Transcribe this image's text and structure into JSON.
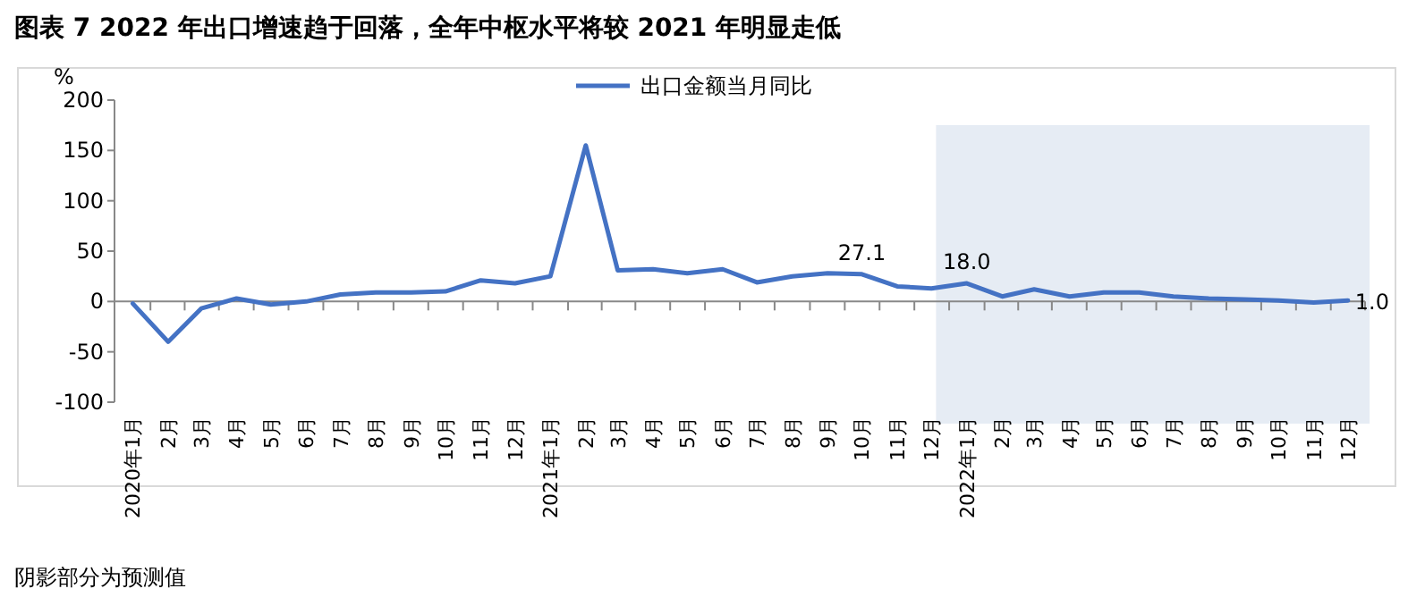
{
  "chart_data": {
    "type": "line",
    "title": "图表 7  2022 年出口增速趋于回落，全年中枢水平将较 2021 年明显走低",
    "ylabel": "%",
    "x": [
      "2020-01",
      "2020-02",
      "2020-03",
      "2020-04",
      "2020-05",
      "2020-06",
      "2020-07",
      "2020-08",
      "2020-09",
      "2020-10",
      "2020-11",
      "2020-12",
      "2021-01",
      "2021-02",
      "2021-03",
      "2021-04",
      "2021-05",
      "2021-06",
      "2021-07",
      "2021-08",
      "2021-09",
      "2021-10",
      "2021-11",
      "2021-12",
      "2022-01",
      "2022-02",
      "2022-03",
      "2022-04",
      "2022-05",
      "2022-06",
      "2022-07",
      "2022-08",
      "2022-09",
      "2022-10",
      "2022-11",
      "2022-12"
    ],
    "series": [
      {
        "name": "出口金额当月同比",
        "color": "#4472c4",
        "values": [
          -2,
          -40,
          -7,
          3,
          -3,
          0,
          7,
          9,
          9,
          10,
          21,
          18,
          25,
          155,
          31,
          32,
          28,
          32,
          19,
          25,
          28,
          27.1,
          15,
          13,
          18.0,
          5,
          12,
          5,
          9,
          9,
          5,
          3,
          2,
          1,
          -1,
          1.0
        ],
        "value_labels": [
          null,
          null,
          null,
          null,
          null,
          null,
          null,
          null,
          null,
          null,
          null,
          null,
          null,
          null,
          null,
          null,
          null,
          null,
          null,
          null,
          null,
          "27.1",
          null,
          null,
          "18.0",
          null,
          null,
          null,
          null,
          null,
          null,
          null,
          null,
          null,
          null,
          "1.0"
        ]
      }
    ],
    "xlim": [
      "2019-12-16",
      "2022-12-16"
    ],
    "xticks": [
      {
        "value": "2020-01",
        "label": "2020年1月"
      },
      {
        "value": "2020-02",
        "label": "2月"
      },
      {
        "value": "2020-03",
        "label": "3月"
      },
      {
        "value": "2020-04",
        "label": "4月"
      },
      {
        "value": "2020-05",
        "label": "5月"
      },
      {
        "value": "2020-06",
        "label": "6月"
      },
      {
        "value": "2020-07",
        "label": "7月"
      },
      {
        "value": "2020-08",
        "label": "8月"
      },
      {
        "value": "2020-09",
        "label": "9月"
      },
      {
        "value": "2020-10",
        "label": "10月"
      },
      {
        "value": "2020-11",
        "label": "11月"
      },
      {
        "value": "2020-12",
        "label": "12月"
      },
      {
        "value": "2021-01",
        "label": "2021年1月"
      },
      {
        "value": "2021-02",
        "label": "2月"
      },
      {
        "value": "2021-03",
        "label": "3月"
      },
      {
        "value": "2021-04",
        "label": "4月"
      },
      {
        "value": "2021-05",
        "label": "5月"
      },
      {
        "value": "2021-06",
        "label": "6月"
      },
      {
        "value": "2021-07",
        "label": "7月"
      },
      {
        "value": "2021-08",
        "label": "8月"
      },
      {
        "value": "2021-09",
        "label": "9月"
      },
      {
        "value": "2021-10",
        "label": "10月"
      },
      {
        "value": "2021-11",
        "label": "11月"
      },
      {
        "value": "2021-12",
        "label": "12月"
      },
      {
        "value": "2022-01",
        "label": "2022年1月"
      },
      {
        "value": "2022-02",
        "label": "2月"
      },
      {
        "value": "2022-03",
        "label": "3月"
      },
      {
        "value": "2022-04",
        "label": "4月"
      },
      {
        "value": "2022-05",
        "label": "5月"
      },
      {
        "value": "2022-06",
        "label": "6月"
      },
      {
        "value": "2022-07",
        "label": "7月"
      },
      {
        "value": "2022-08",
        "label": "8月"
      },
      {
        "value": "2022-09",
        "label": "9月"
      },
      {
        "value": "2022-10",
        "label": "10月"
      },
      {
        "value": "2022-11",
        "label": "11月"
      },
      {
        "value": "2022-12",
        "label": "12月"
      }
    ],
    "ylim": [
      -100,
      200
    ],
    "yticks": [
      -100,
      -50,
      0,
      50,
      100,
      150,
      200
    ],
    "bands": [
      {
        "axis": "x",
        "from": "2021-12-05",
        "to": "2022-12-20",
        "color": "#e6ecf4"
      }
    ],
    "legend": "top",
    "marker": "none",
    "line_style": "solid",
    "annotations": [
      "阴影部分为预测值"
    ]
  }
}
